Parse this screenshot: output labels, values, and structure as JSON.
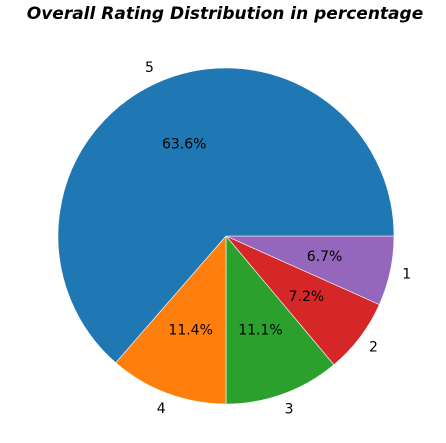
{
  "chart_data": {
    "type": "pie",
    "title": "Overall Rating Distribution in percentage",
    "slices": [
      {
        "label": "1",
        "percent": 6.7,
        "value_text": "6.7%",
        "color": "#9467bd"
      },
      {
        "label": "2",
        "percent": 7.2,
        "value_text": "7.2%",
        "color": "#d62728"
      },
      {
        "label": "3",
        "percent": 11.1,
        "value_text": "11.1%",
        "color": "#2ca02c"
      },
      {
        "label": "4",
        "percent": 11.4,
        "value_text": "11.4%",
        "color": "#ff7f0e"
      },
      {
        "label": "5",
        "percent": 63.6,
        "value_text": "63.6%",
        "color": "#1f77b4"
      }
    ],
    "direction": "clockwise",
    "start": "3 o'clock",
    "legend": "none"
  }
}
